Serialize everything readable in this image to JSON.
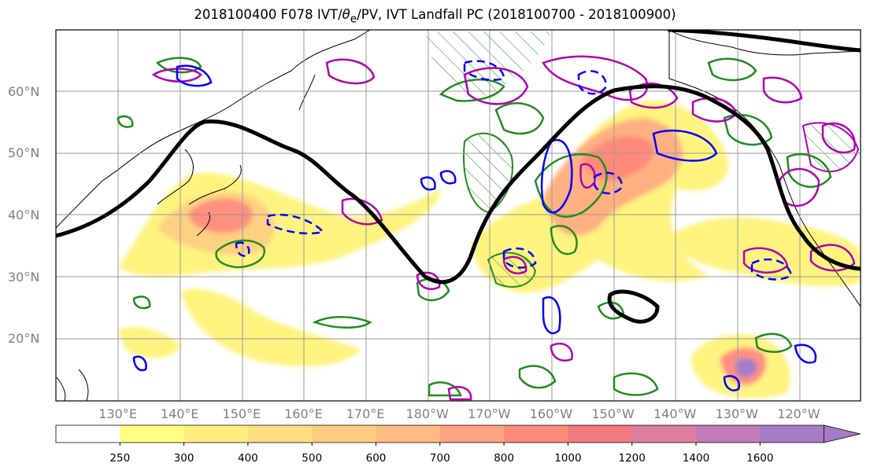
{
  "title_prefix": "2018100400 F078 IVT/",
  "title_theta": "θ",
  "title_sub": "e",
  "title_suffix": "/PV, IVT Landfall PC (2018100700 - 2018100900)",
  "map": {
    "lat_labels": [
      {
        "text": "60°N",
        "lat": 60
      },
      {
        "text": "50°N",
        "lat": 50
      },
      {
        "text": "40°N",
        "lat": 40
      },
      {
        "text": "30°N",
        "lat": 30
      },
      {
        "text": "20°N",
        "lat": 20
      }
    ],
    "lon_labels": [
      {
        "text": "130°E",
        "lon": 130
      },
      {
        "text": "140°E",
        "lon": 140
      },
      {
        "text": "150°E",
        "lon": 150
      },
      {
        "text": "160°E",
        "lon": 160
      },
      {
        "text": "170°E",
        "lon": 170
      },
      {
        "text": "180°W",
        "lon": 180
      },
      {
        "text": "170°W",
        "lon": 190
      },
      {
        "text": "160°W",
        "lon": 200
      },
      {
        "text": "150°W",
        "lon": 210
      },
      {
        "text": "140°W",
        "lon": 220
      },
      {
        "text": "130°W",
        "lon": 230
      },
      {
        "text": "120°W",
        "lon": 240
      }
    ]
  },
  "colorbar": {
    "ticks": [
      "250",
      "300",
      "400",
      "500",
      "600",
      "700",
      "800",
      "1000",
      "1200",
      "1400",
      "1600"
    ],
    "colors": [
      "#ffff80",
      "#ffee80",
      "#ffdd80",
      "#ffcc80",
      "#ffbb80",
      "#ffa480",
      "#ff8a7a",
      "#f07a80",
      "#dd7ea0",
      "#c07cb8",
      "#a67cc8"
    ],
    "extend": "max"
  }
}
